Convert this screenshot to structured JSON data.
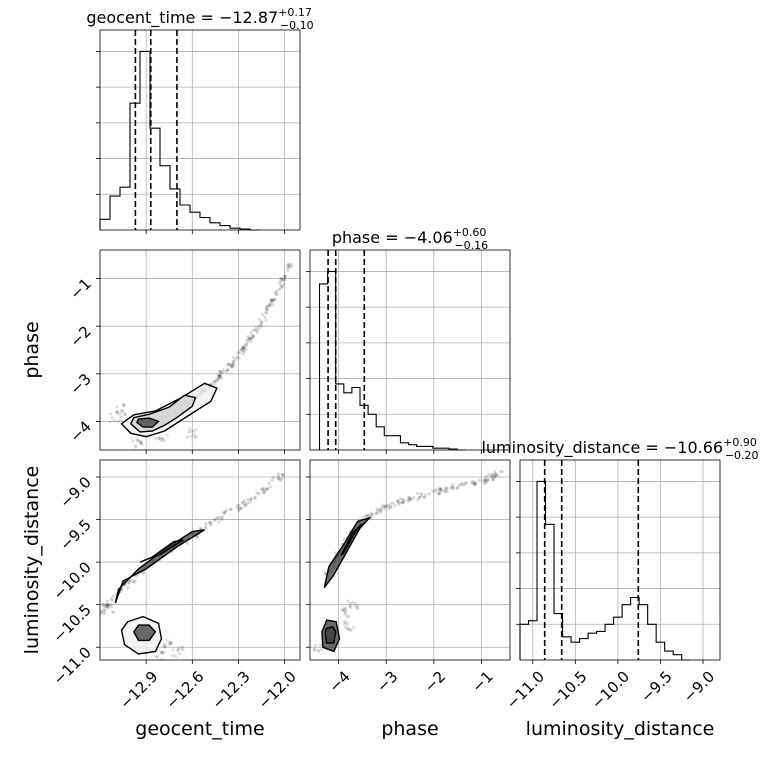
{
  "chart_data": {
    "type": "corner",
    "parameters": [
      {
        "name": "geocent_time",
        "title": {
          "prefix": "geocent_time = ",
          "median": "−12.87",
          "plus": "+0.17",
          "minus": "−0.10"
        },
        "xlabel": "geocent_time",
        "range": [
          -13.2,
          -11.9
        ],
        "ticks": [
          -12.9,
          -12.6,
          -12.3,
          -12.0
        ],
        "tick_labels": [
          "−12.9",
          "−12.6",
          "−12.3",
          "−12.0"
        ],
        "quantiles": [
          -12.97,
          -12.87,
          -12.7
        ],
        "hist": {
          "edges": [
            -13.2,
            -13.135,
            -13.07,
            -13.005,
            -12.94,
            -12.875,
            -12.81,
            -12.745,
            -12.68,
            -12.615,
            -12.55,
            -12.485,
            -12.42,
            -12.355,
            -12.29,
            -12.225,
            -12.16
          ],
          "counts": [
            0.06,
            0.19,
            0.24,
            0.71,
            1.0,
            0.57,
            0.36,
            0.23,
            0.14,
            0.1,
            0.07,
            0.04,
            0.025,
            0.01,
            0.005,
            0.0
          ]
        }
      },
      {
        "name": "phase",
        "title": {
          "prefix": "phase = ",
          "median": "−4.06",
          "plus": "+0.60",
          "minus": "−0.16"
        },
        "xlabel": "phase",
        "ylabel": "phase",
        "range": [
          -4.6,
          -0.4
        ],
        "ticks": [
          -4,
          -3,
          -2,
          -1
        ],
        "tick_labels": [
          "−4",
          "−3",
          "−2",
          "−1"
        ],
        "quantiles": [
          -4.22,
          -4.06,
          -3.46
        ],
        "hist": {
          "edges": [
            -4.4,
            -4.23,
            -4.06,
            -3.89,
            -3.72,
            -3.55,
            -3.38,
            -3.21,
            -3.04,
            -2.87,
            -2.7,
            -2.53,
            -2.36,
            -2.19,
            -2.02,
            -1.85,
            -1.68,
            -1.51,
            -1.34
          ],
          "counts": [
            0.93,
            1.0,
            0.37,
            0.32,
            0.35,
            0.25,
            0.2,
            0.13,
            0.08,
            0.08,
            0.04,
            0.03,
            0.02,
            0.02,
            0.01,
            0.01,
            0.005,
            0.0
          ]
        }
      },
      {
        "name": "luminosity_distance",
        "title": {
          "prefix": "luminosity_distance = ",
          "median": "−10.66",
          "plus": "+0.90",
          "minus": "−0.20"
        },
        "xlabel": "luminosity_distance",
        "ylabel": "luminosity_distance",
        "range": [
          -11.15,
          -8.8
        ],
        "ticks": [
          -11.0,
          -10.5,
          -10.0,
          -9.5,
          -9.0
        ],
        "tick_labels": [
          "−11.0",
          "−10.5",
          "−10.0",
          "−9.5",
          "−9.0"
        ],
        "quantiles": [
          -10.86,
          -10.66,
          -9.76
        ],
        "hist": {
          "edges": [
            -11.15,
            -11.05,
            -10.95,
            -10.85,
            -10.75,
            -10.65,
            -10.55,
            -10.45,
            -10.35,
            -10.25,
            -10.15,
            -10.05,
            -9.95,
            -9.85,
            -9.75,
            -9.65,
            -9.55,
            -9.45,
            -9.35,
            -9.25,
            -9.15
          ],
          "counts": [
            0.2,
            0.22,
            1.0,
            0.76,
            0.26,
            0.13,
            0.1,
            0.12,
            0.15,
            0.16,
            0.2,
            0.24,
            0.31,
            0.35,
            0.31,
            0.2,
            0.1,
            0.05,
            0.03,
            0.0
          ]
        }
      }
    ],
    "pairs": [
      {
        "x": "geocent_time",
        "y": "phase",
        "contours": [
          [
            [
              -13.06,
              -4.05
            ],
            [
              -13.0,
              -4.25
            ],
            [
              -12.9,
              -4.32
            ],
            [
              -12.78,
              -4.2
            ],
            [
              -12.66,
              -3.95
            ],
            [
              -12.48,
              -3.58
            ],
            [
              -12.44,
              -3.3
            ],
            [
              -12.52,
              -3.2
            ],
            [
              -12.67,
              -3.5
            ],
            [
              -12.84,
              -3.78
            ],
            [
              -12.98,
              -3.86
            ],
            [
              -13.06,
              -4.05
            ]
          ],
          [
            [
              -13.0,
              -4.05
            ],
            [
              -12.94,
              -4.22
            ],
            [
              -12.86,
              -4.2
            ],
            [
              -12.78,
              -4.08
            ],
            [
              -12.7,
              -3.92
            ],
            [
              -12.6,
              -3.68
            ],
            [
              -12.58,
              -3.5
            ],
            [
              -12.65,
              -3.45
            ],
            [
              -12.75,
              -3.7
            ],
            [
              -12.88,
              -3.85
            ],
            [
              -12.98,
              -3.92
            ],
            [
              -13.0,
              -4.05
            ]
          ],
          [
            [
              -12.96,
              -4.02
            ],
            [
              -12.92,
              -4.12
            ],
            [
              -12.86,
              -4.12
            ],
            [
              -12.82,
              -4.0
            ],
            [
              -12.88,
              -3.93
            ],
            [
              -12.95,
              -3.95
            ],
            [
              -12.96,
              -4.02
            ]
          ]
        ],
        "ridge": [
          [
            -12.9,
            -4.05
          ],
          [
            -12.7,
            -3.8
          ],
          [
            -12.55,
            -3.4
          ],
          [
            -12.45,
            -3.15
          ],
          [
            -12.35,
            -2.8
          ],
          [
            -12.25,
            -2.4
          ],
          [
            -12.15,
            -1.9
          ],
          [
            -12.05,
            -1.3
          ],
          [
            -11.95,
            -0.6
          ]
        ],
        "tail": [
          [
            -12.95,
            -4.45
          ],
          [
            -12.8,
            -4.3
          ],
          [
            -12.6,
            -4.25
          ],
          [
            -13.1,
            -3.9
          ],
          [
            -13.05,
            -3.75
          ]
        ]
      },
      {
        "x": "geocent_time",
        "y": "luminosity_distance",
        "contours": [
          [
            [
              -13.06,
              -10.8
            ],
            [
              -13.04,
              -10.97
            ],
            [
              -12.95,
              -11.08
            ],
            [
              -12.84,
              -11.05
            ],
            [
              -12.8,
              -10.9
            ],
            [
              -12.82,
              -10.72
            ],
            [
              -12.92,
              -10.64
            ],
            [
              -13.02,
              -10.7
            ],
            [
              -13.06,
              -10.8
            ]
          ],
          [
            [
              -12.98,
              -10.82
            ],
            [
              -12.95,
              -10.92
            ],
            [
              -12.88,
              -10.92
            ],
            [
              -12.84,
              -10.82
            ],
            [
              -12.88,
              -10.74
            ],
            [
              -12.95,
              -10.74
            ],
            [
              -12.98,
              -10.82
            ]
          ],
          [
            [
              -13.1,
              -10.48
            ],
            [
              -13.05,
              -10.22
            ],
            [
              -12.9,
              -10.08
            ],
            [
              -12.7,
              -9.82
            ],
            [
              -12.52,
              -9.62
            ],
            [
              -12.6,
              -9.64
            ],
            [
              -12.78,
              -9.85
            ],
            [
              -12.95,
              -10.08
            ],
            [
              -13.08,
              -10.32
            ],
            [
              -13.1,
              -10.48
            ]
          ],
          [
            [
              -12.94,
              -10.0
            ],
            [
              -12.8,
              -9.9
            ],
            [
              -12.66,
              -9.74
            ],
            [
              -12.72,
              -9.76
            ],
            [
              -12.86,
              -9.94
            ],
            [
              -12.94,
              -10.0
            ]
          ]
        ],
        "ridge": [
          [
            -13.2,
            -10.6
          ],
          [
            -13.05,
            -10.3
          ],
          [
            -12.85,
            -10.0
          ],
          [
            -12.6,
            -9.7
          ],
          [
            -12.4,
            -9.45
          ],
          [
            -12.2,
            -9.25
          ],
          [
            -12.0,
            -8.95
          ]
        ],
        "tail": [
          [
            -13.15,
            -10.55
          ],
          [
            -12.8,
            -11.1
          ],
          [
            -12.7,
            -11.05
          ],
          [
            -12.75,
            -10.95
          ]
        ]
      },
      {
        "x": "phase",
        "y": "luminosity_distance",
        "contours": [
          [
            [
              -4.35,
              -10.82
            ],
            [
              -4.33,
              -11.0
            ],
            [
              -4.1,
              -11.05
            ],
            [
              -3.98,
              -10.9
            ],
            [
              -4.05,
              -10.7
            ],
            [
              -4.25,
              -10.68
            ],
            [
              -4.35,
              -10.82
            ]
          ],
          [
            [
              -4.28,
              -10.84
            ],
            [
              -4.25,
              -10.95
            ],
            [
              -4.1,
              -10.95
            ],
            [
              -4.06,
              -10.82
            ],
            [
              -4.12,
              -10.76
            ],
            [
              -4.26,
              -10.78
            ],
            [
              -4.28,
              -10.84
            ]
          ],
          [
            [
              -4.3,
              -10.3
            ],
            [
              -4.2,
              -10.05
            ],
            [
              -3.9,
              -9.8
            ],
            [
              -3.6,
              -9.52
            ],
            [
              -3.35,
              -9.48
            ],
            [
              -3.55,
              -9.6
            ],
            [
              -3.85,
              -9.9
            ],
            [
              -4.1,
              -10.15
            ],
            [
              -4.3,
              -10.3
            ]
          ],
          [
            [
              -3.95,
              -9.92
            ],
            [
              -3.7,
              -9.65
            ],
            [
              -3.5,
              -9.55
            ],
            [
              -3.65,
              -9.65
            ],
            [
              -3.9,
              -9.9
            ],
            [
              -3.95,
              -9.92
            ]
          ]
        ],
        "ridge": [
          [
            -4.3,
            -10.2
          ],
          [
            -4.0,
            -9.9
          ],
          [
            -3.5,
            -9.5
          ],
          [
            -3.0,
            -9.35
          ],
          [
            -2.5,
            -9.25
          ],
          [
            -1.8,
            -9.15
          ],
          [
            -1.0,
            -9.05
          ],
          [
            -0.6,
            -8.95
          ]
        ],
        "tail": [
          [
            -4.4,
            -11.0
          ],
          [
            -3.9,
            -10.6
          ],
          [
            -3.8,
            -10.75
          ],
          [
            -3.7,
            -10.5
          ]
        ]
      }
    ]
  }
}
